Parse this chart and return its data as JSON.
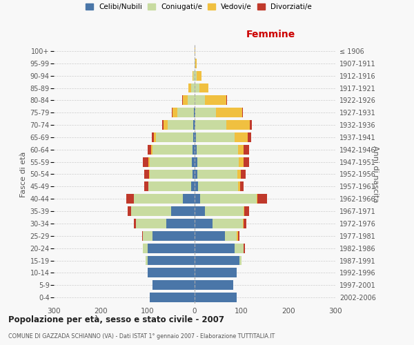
{
  "age_groups_bottom_to_top": [
    "0-4",
    "5-9",
    "10-14",
    "15-19",
    "20-24",
    "25-29",
    "30-34",
    "35-39",
    "40-44",
    "45-49",
    "50-54",
    "55-59",
    "60-64",
    "65-69",
    "70-74",
    "75-79",
    "80-84",
    "85-89",
    "90-94",
    "95-99",
    "100+"
  ],
  "birth_years_bottom_to_top": [
    "2002-2006",
    "1997-2001",
    "1992-1996",
    "1987-1991",
    "1982-1986",
    "1977-1981",
    "1972-1976",
    "1967-1971",
    "1962-1966",
    "1957-1961",
    "1952-1956",
    "1947-1951",
    "1942-1946",
    "1937-1941",
    "1932-1936",
    "1927-1931",
    "1922-1926",
    "1917-1921",
    "1912-1916",
    "1907-1911",
    "≤ 1906"
  ],
  "male": {
    "celibi": [
      95,
      90,
      100,
      100,
      100,
      90,
      60,
      50,
      25,
      8,
      5,
      6,
      5,
      3,
      3,
      2,
      0,
      0,
      0,
      0,
      0
    ],
    "coniugati": [
      0,
      0,
      0,
      4,
      10,
      20,
      65,
      85,
      105,
      90,
      90,
      90,
      85,
      80,
      55,
      35,
      15,
      8,
      3,
      0,
      0
    ],
    "vedovi": [
      0,
      0,
      0,
      0,
      0,
      0,
      0,
      0,
      0,
      1,
      2,
      2,
      2,
      4,
      8,
      10,
      10,
      5,
      2,
      0,
      0
    ],
    "divorziati": [
      0,
      0,
      0,
      0,
      0,
      2,
      5,
      8,
      15,
      8,
      10,
      12,
      8,
      4,
      3,
      2,
      1,
      0,
      0,
      0,
      0
    ]
  },
  "female": {
    "nubili": [
      90,
      82,
      90,
      95,
      85,
      65,
      38,
      22,
      12,
      8,
      6,
      6,
      4,
      3,
      2,
      1,
      0,
      0,
      0,
      0,
      0
    ],
    "coniugate": [
      0,
      0,
      0,
      5,
      20,
      25,
      65,
      82,
      120,
      85,
      85,
      88,
      88,
      82,
      65,
      45,
      22,
      10,
      4,
      2,
      0
    ],
    "vedove": [
      0,
      0,
      0,
      0,
      0,
      2,
      2,
      2,
      2,
      4,
      8,
      10,
      12,
      28,
      50,
      55,
      45,
      20,
      10,
      2,
      2
    ],
    "divorziate": [
      0,
      0,
      0,
      0,
      2,
      3,
      5,
      10,
      20,
      8,
      10,
      12,
      12,
      8,
      5,
      2,
      2,
      0,
      0,
      0,
      0
    ]
  },
  "colors": {
    "celibi": "#4a76a8",
    "coniugati": "#c8dba0",
    "vedovi": "#f0c040",
    "divorziati": "#c0392b"
  },
  "xlim": 300,
  "title": "Popolazione per età, sesso e stato civile - 2007",
  "subtitle": "COMUNE DI GAZZADA SCHIANNO (VA) - Dati ISTAT 1° gennaio 2007 - Elaborazione TUTTITALIA.IT",
  "xlabel_right": "Femmine",
  "ylabel_left": "Fasce di età",
  "ylabel_right": "Anni di nascita",
  "legend_labels": [
    "Celibi/Nubili",
    "Coniugati/e",
    "Vedovi/e",
    "Divorziati/e"
  ],
  "background_color": "#f8f8f8",
  "grid_color": "#cccccc"
}
